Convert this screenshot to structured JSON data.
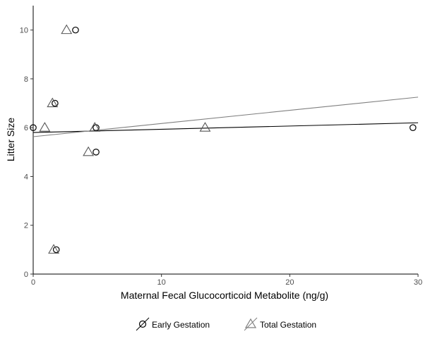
{
  "chart_data": {
    "type": "scatter",
    "xlabel": "Maternal Fecal Glucocorticoid Metabolite (ng/g)",
    "ylabel": "Litter Size",
    "xlim": [
      0,
      30
    ],
    "ylim": [
      0,
      11
    ],
    "x_ticks": [
      0,
      10,
      20,
      30
    ],
    "y_ticks": [
      0,
      2,
      4,
      6,
      8,
      10
    ],
    "grid": false,
    "legend_position": "bottom",
    "series": [
      {
        "name": "Early Gestation",
        "marker": "circle",
        "line_color": "#000000",
        "points": [
          {
            "x": 0.0,
            "y": 6
          },
          {
            "x": 3.3,
            "y": 10
          },
          {
            "x": 1.7,
            "y": 7
          },
          {
            "x": 4.9,
            "y": 6
          },
          {
            "x": 4.9,
            "y": 5
          },
          {
            "x": 1.8,
            "y": 1
          },
          {
            "x": 29.6,
            "y": 6
          }
        ],
        "fit": {
          "x": [
            0,
            30
          ],
          "y": [
            5.8,
            6.2
          ]
        }
      },
      {
        "name": "Total Gestation",
        "marker": "triangle",
        "line_color": "#7f7f7f",
        "points": [
          {
            "x": 0.9,
            "y": 6
          },
          {
            "x": 2.6,
            "y": 10
          },
          {
            "x": 1.5,
            "y": 7
          },
          {
            "x": 4.8,
            "y": 6
          },
          {
            "x": 4.3,
            "y": 5
          },
          {
            "x": 1.6,
            "y": 1
          },
          {
            "x": 13.4,
            "y": 6
          }
        ],
        "fit": {
          "x": [
            0,
            30
          ],
          "y": [
            5.63,
            7.25
          ]
        }
      }
    ]
  }
}
